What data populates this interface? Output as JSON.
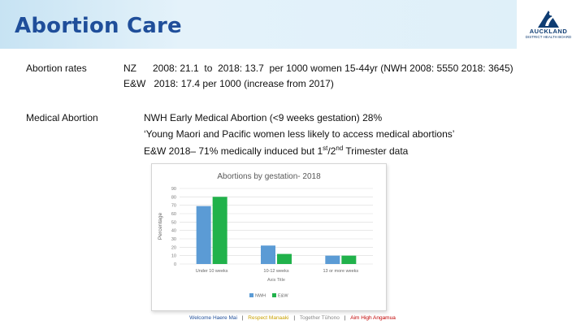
{
  "header": {
    "title": "Abortion Care"
  },
  "logo": {
    "name": "AUCKLAND",
    "tagline": "DISTRICT HEALTH BOARD",
    "sub": "Te Toka Tumai"
  },
  "rows": [
    {
      "label": "Abortion rates",
      "lines": [
        "NZ    2008: 21.1  to  2018: 13.7  per 1000 women 15-44yr (NWH 2008: 5550 2018: 3645)",
        "E&W   2018: 17.4 per 1000 (increase from 2017)"
      ]
    },
    {
      "label": "Medical Abortion",
      "lines": [
        "NWH Early Medical Abortion (<9 weeks gestation) 28%",
        "‘Young Maori and Pacific women less likely to access medical abortions’",
        "E&W 2018– 71% medically induced but 1st/2nd Trimester data"
      ]
    }
  ],
  "chart_data": {
    "type": "bar",
    "title": "Abortions by gestation- 2018",
    "xlabel": "Axis Title",
    "ylabel": "Percentage",
    "ylim": [
      0,
      90
    ],
    "yticks": [
      0,
      10,
      20,
      30,
      40,
      50,
      60,
      70,
      80,
      90
    ],
    "categories": [
      "Under 10 weeks",
      "10-12 weeks",
      "13 or more weeks"
    ],
    "series": [
      {
        "name": "NWH",
        "values": [
          69,
          22,
          10
        ],
        "color": "#5b9bd5"
      },
      {
        "name": "E&W",
        "values": [
          80,
          12,
          10
        ],
        "color": "#21b24b"
      }
    ],
    "legend_position": "bottom",
    "grid": true
  },
  "footer": {
    "welcome": "Welcome  Haere Mai",
    "respect": "Respect  Manaaki",
    "together": "Together  Tūhono",
    "aim": "Aim High  Angamua",
    "sep": "|"
  }
}
